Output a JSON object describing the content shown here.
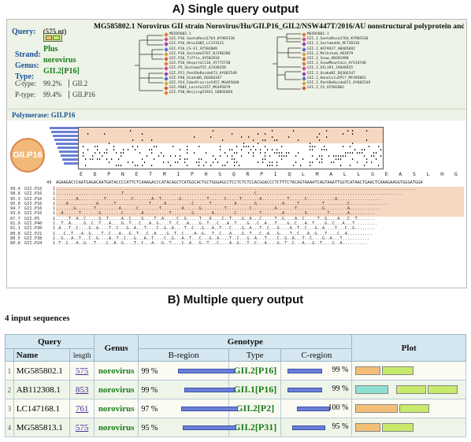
{
  "panelA": {
    "title": "A) Single query output",
    "query_label": "Query:",
    "query_len": "(575 nt)",
    "query_desc": "MG585802.1 Norovirus GII strain Norovirus/Hu/GII.P16_GII.2/NSW447T/2016/AU nonstructural polyprotein and VP1 genes, partial cds",
    "strand_label": "Strand:",
    "strand_value": "Plus",
    "genus_label": "Genus:",
    "genus_value": "norovirus",
    "type_label": "Type:",
    "type_value": "GII.2[P16]",
    "ctype_label": "C-type:",
    "ctype_pct": "99.2%",
    "ctype_value": "GII.2",
    "ptype_label": "P-type:",
    "ptype_pct": "99.4%",
    "ptype_value": "GII.P16",
    "polymerase_label": "Polymerase: GII.P16",
    "badge": "GII.P16",
    "aa_sequence": "E D P N E T M I P H S Q R P I Q L M A L L G E A S L H G P S F Y S K I S K L V I T E L K E G G M D",
    "tree_left": [
      "MG585802.1",
      "GII.P16_SantaRosa1764_KY905336",
      "GII.P16_Ohio1082_LC153121",
      "GII.P16_CS-E1_AY502009",
      "GII.P16_Saitama5T87_KJ196286",
      "GII.P16_Tiffin_AY502010",
      "GII.P16_Hospital116_AY772730",
      "GII.P5_SaitamaT52_AJ436258",
      "GII.P21_PontDeRoide673_AY682549",
      "GII.P40_OsakaNI_DQ366347",
      "GII.P24_EdenPrairie5457_MG495040",
      "GII.P001_Loreto1257_MG495079",
      "GII.P30_Beijing53931_GQ856469"
    ],
    "tree_right": [
      "MG585802.1",
      "GII.2_SantaRosa1764_KY905336",
      "GII.2_SaitamaU4_AF730316",
      "GII.2_HCF9427_AB465092",
      "GII.2_Melksham_X81879",
      "GII.2_Snow_AB281990",
      "GII.2_SnowMountain_AY134748",
      "GII.2_OIL193_JX846925",
      "GII.2_OsakaNI_DQ366347",
      "GII.2_Honolulu5P17_MF495063",
      "GII.2_PontDeRoide673_AY682549",
      "GII.2_CS_AY502002"
    ],
    "nt_sequence": "AGAAGACCCAATGAGACAATGATACCCCATTCTCAAAGACCCATACAGCTCATGGCACTGCTGGGAGCCTCCTCTCTCCACGGACCCTCTTTCTACAGTAAAATCAGTAAATTGGTCATAACTGAACTCAAAGAAGGTGGGATGGA",
    "nt_rows": [
      {
        "pct": "99.4",
        "name": "GII.P16",
        "seq": "...............................................................................................................................................",
        "hl": true
      },
      {
        "pct": "98.8",
        "name": "GII.P16",
        "seq": "..........................T....................................................C..........................................................",
        "hl": true
      },
      {
        "pct": "95.3",
        "name": "GII.P16",
        "seq": "........A..........T..........C.......A..T.......G..........T......C.....T.......A..........T......C...........A..................",
        "hl": true
      },
      {
        "pct": "95.0",
        "name": "GII.P16",
        "seq": "....A...........A......T.............T.....A..........C......T.........A.......G..........A.....T.........T.........C...............",
        "hl": true
      },
      {
        "pct": "94.7",
        "name": "GII.P16",
        "seq": ".......G.......T.........A......C........T........A......G.........T.........C.........A.......T..........G.........A............",
        "hl": true
      },
      {
        "pct": "93.6",
        "name": "GII.P16",
        "seq": "..A......T.......G........C.......A..........T........G.......A........C.........T........A........G........T.......A..........",
        "hl": true
      },
      {
        "pct": "87.7",
        "name": "GII.P5",
        "seq": ".....T..A..C.....G..T.....A..C....G....T..A.....C..G.....T...A....C..T....G..A...C.....T..G....A..C.....T..G....A...C..T.......",
        "hl": false
      },
      {
        "pct": "81.9",
        "name": "GII.P40",
        "seq": "..T..A.....G..C..T...A....G..T...C...A..G....T..C...A....G..T...C...A..T....G...C..A...T....G..C...A..T....G..C...A...T.........",
        "hl": false
      },
      {
        "pct": "81.1",
        "name": "GII.P30",
        "seq": ".A...T..C....G..A....T..C...G..A...T....C..G..A....T..C...G...A..T...C....G..A...T..C...G....A..T..C...G..A....T...C..G........",
        "hl": false
      },
      {
        "pct": "80.8",
        "name": "GII.P21",
        "seq": "...C..T...A..G....T..C...A...G..T...C..A....G..T..C....A..G...T..C...A....G..T...C..A...G....T..C...A..G...T....C..A..........",
        "hl": false
      },
      {
        "pct": "80.5",
        "name": "GII.P38",
        "seq": "..G...A..T...C..G....A..T..C...G...A..T....C..G...A..T...C...G..A....T..C...G..A...T....C..G..A...T..C....G..A...T...........",
        "hl": false
      },
      {
        "pct": "80.8",
        "name": "GII.P24",
        "seq": ".T..C...A..G...T....C..A..G....T..C...A...G..T....C..A...G..T...C....A..G...T..C...A....G..T..C...A...G..T....C..A..........",
        "hl": false
      }
    ]
  },
  "panelB": {
    "title": "B) Multiple query output",
    "count": "4 input sequences",
    "headers": {
      "query": "Query",
      "name": "Name",
      "length": "length",
      "genus": "Genus",
      "genotype": "Genotype",
      "bregion": "B-region",
      "type": "Type",
      "cregion": "C-region",
      "plot": "Plot"
    },
    "rows": [
      {
        "idx": "1",
        "name": "MG585802.1",
        "length": "575",
        "genus": "norovirus",
        "b_pct": "99 %",
        "type": "GII.2[P16]",
        "c_pct": "99 %"
      },
      {
        "idx": "2",
        "name": "AB112308.1",
        "length": "853",
        "genus": "norovirus",
        "b_pct": "99 %",
        "type": "GII.1[P16]",
        "c_pct": "99 %"
      },
      {
        "idx": "3",
        "name": "LC147168.1",
        "length": "761",
        "genus": "norovirus",
        "b_pct": "97 %",
        "type": "GII.2[P2]",
        "c_pct": "100 %"
      },
      {
        "idx": "4",
        "name": "MG585813.1",
        "length": "575",
        "genus": "norovirus",
        "b_pct": "95 %",
        "type": "GII.2[P31]",
        "c_pct": "95 %"
      }
    ],
    "colors": {
      "accent": "#1a7a1a",
      "header_bg": "#d4e6f0",
      "bar_blue": "#6a7fd6",
      "plot_orange": "#f3bf77",
      "plot_green": "#c8ea6a",
      "plot_teal": "#8ee0d4"
    }
  }
}
